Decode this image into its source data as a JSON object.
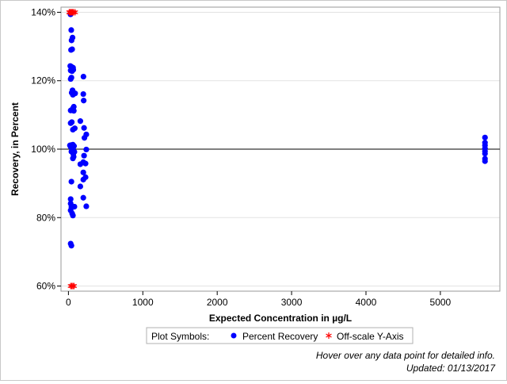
{
  "chart_data": {
    "type": "scatter",
    "title": "",
    "xlabel": "Expected Concentration in µg/L",
    "ylabel": "Recovery, in Percent",
    "xlim": [
      -100,
      5800
    ],
    "ylim": [
      58.5,
      141.5
    ],
    "x_ticks": [
      0,
      1000,
      2000,
      3000,
      4000,
      5000
    ],
    "x_tick_labels": [
      "0",
      "1000",
      "2000",
      "3000",
      "4000",
      "5000"
    ],
    "y_ticks": [
      60,
      80,
      100,
      120,
      140
    ],
    "y_tick_labels": [
      "60%",
      "80%",
      "100%",
      "120%",
      "140%"
    ],
    "reference_line": 100,
    "grid": "horizontal",
    "legend": {
      "title": "Plot Symbols:",
      "placement": "bottom-center",
      "entries": [
        {
          "label": "Percent Recovery",
          "symbol": "circle",
          "color": "#0000ff"
        },
        {
          "label": "Off-scale Y-Axis",
          "symbol": "asterisk",
          "color": "#ff0000"
        }
      ]
    },
    "series": [
      {
        "name": "Percent Recovery",
        "color": "#0000ff",
        "points": [
          [
            28,
            139.4
          ],
          [
            38,
            134.8
          ],
          [
            55,
            132.6
          ],
          [
            42,
            131.8
          ],
          [
            35,
            129
          ],
          [
            50,
            129.2
          ],
          [
            25,
            124.3
          ],
          [
            40,
            124.1
          ],
          [
            62,
            123.8
          ],
          [
            30,
            123
          ],
          [
            48,
            122.8
          ],
          [
            65,
            123.2
          ],
          [
            202,
            121.2
          ],
          [
            40,
            120.9
          ],
          [
            30,
            120.5
          ],
          [
            55,
            117.2
          ],
          [
            44,
            116.5
          ],
          [
            70,
            116.5
          ],
          [
            90,
            116.3
          ],
          [
            60,
            115.9
          ],
          [
            200,
            116.1
          ],
          [
            205,
            114.2
          ],
          [
            72,
            112.4
          ],
          [
            60,
            111.9
          ],
          [
            72,
            111.2
          ],
          [
            30,
            111.3
          ],
          [
            160,
            108.2
          ],
          [
            30,
            107.6
          ],
          [
            45,
            107.9
          ],
          [
            85,
            106.1
          ],
          [
            60,
            105.7
          ],
          [
            210,
            106.2
          ],
          [
            240,
            104.3
          ],
          [
            215,
            103.3
          ],
          [
            20,
            101.1
          ],
          [
            40,
            101.2
          ],
          [
            60,
            101.3
          ],
          [
            75,
            100.9
          ],
          [
            60,
            100.2
          ],
          [
            30,
            100.7
          ],
          [
            40,
            99.3
          ],
          [
            80,
            99.2
          ],
          [
            65,
            98.6
          ],
          [
            240,
            99.9
          ],
          [
            210,
            98.1
          ],
          [
            60,
            97.3
          ],
          [
            70,
            97.8
          ],
          [
            200,
            96.2
          ],
          [
            230,
            95.8
          ],
          [
            160,
            95.6
          ],
          [
            200,
            93.2
          ],
          [
            230,
            91.8
          ],
          [
            40,
            90.5
          ],
          [
            200,
            91.1
          ],
          [
            160,
            89.1
          ],
          [
            200,
            85.8
          ],
          [
            30,
            85.4
          ],
          [
            30,
            84.1
          ],
          [
            40,
            83.1
          ],
          [
            80,
            83.2
          ],
          [
            240,
            83.3
          ],
          [
            30,
            82.1
          ],
          [
            50,
            81.2
          ],
          [
            60,
            80.6
          ],
          [
            30,
            72.4
          ],
          [
            40,
            71.8
          ],
          [
            5600,
            103.4
          ],
          [
            5600,
            101.9
          ],
          [
            5600,
            101.1
          ],
          [
            5600,
            100.2
          ],
          [
            5600,
            99.4
          ],
          [
            5600,
            98.7
          ],
          [
            5600,
            97.2
          ],
          [
            5600,
            96.5
          ]
        ]
      },
      {
        "name": "Off-scale Y-Axis",
        "color": "#ff0000",
        "points": [
          [
            10,
            140
          ],
          [
            20,
            140
          ],
          [
            30,
            140
          ],
          [
            40,
            140
          ],
          [
            50,
            140
          ],
          [
            60,
            140
          ],
          [
            70,
            140
          ],
          [
            90,
            140
          ],
          [
            30,
            60
          ],
          [
            45,
            60
          ],
          [
            60,
            60
          ],
          [
            75,
            60
          ]
        ]
      }
    ]
  },
  "footer": {
    "hover_note": "Hover over any data point for detailed info.",
    "updated": "Updated: 01/13/2017"
  }
}
